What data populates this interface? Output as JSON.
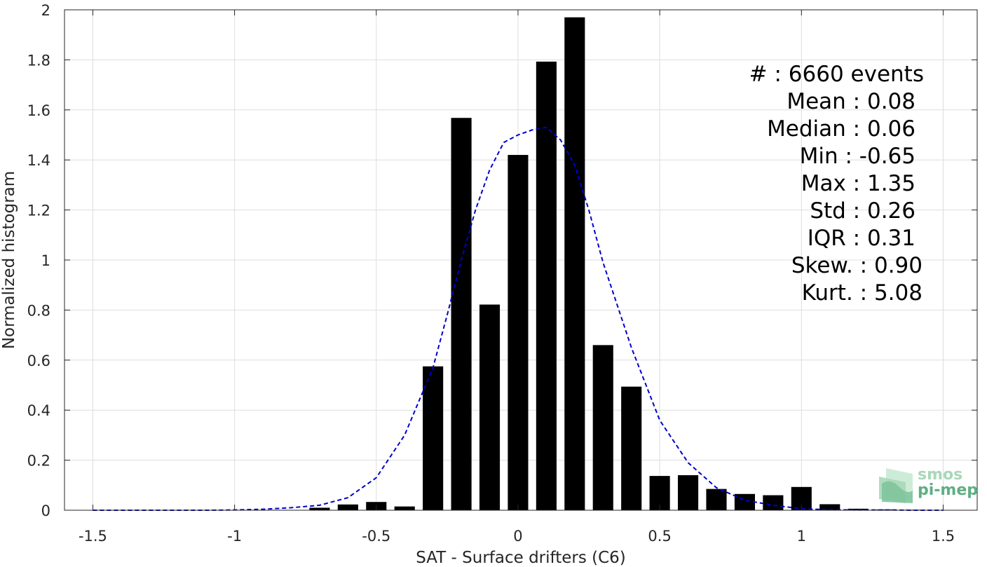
{
  "chart_data": {
    "type": "bar",
    "xlabel": "SAT - Surface drifters (C6)",
    "ylabel": "Normalized histogram",
    "xlim": [
      -1.6,
      1.62
    ],
    "ylim": [
      0,
      2
    ],
    "x_ticks": [
      -1.5,
      -1,
      -0.5,
      0,
      0.5,
      1,
      1.5
    ],
    "x_tick_labels": [
      "-1.5",
      "-1",
      "-0.5",
      "0",
      "0.5",
      "1",
      "1.5"
    ],
    "y_ticks": [
      0,
      0.2,
      0.4,
      0.6,
      0.8,
      1,
      1.2,
      1.4,
      1.6,
      1.8,
      2
    ],
    "y_tick_labels": [
      "0",
      "0.2",
      "0.4",
      "0.6",
      "0.8",
      "1",
      "1.2",
      "1.4",
      "1.6",
      "1.8",
      "2"
    ],
    "grid": true,
    "bar_color": "#000000",
    "bar_width": 0.072,
    "bars": {
      "x": [
        -0.7,
        -0.6,
        -0.5,
        -0.4,
        -0.3,
        -0.2,
        -0.1,
        0.0,
        0.1,
        0.2,
        0.3,
        0.4,
        0.5,
        0.6,
        0.7,
        0.8,
        0.9,
        1.0,
        1.1,
        1.2,
        1.3,
        1.4
      ],
      "values": [
        0.01,
        0.023,
        0.033,
        0.015,
        0.575,
        1.568,
        0.822,
        1.42,
        1.793,
        1.97,
        0.66,
        0.494,
        0.137,
        0.14,
        0.085,
        0.065,
        0.06,
        0.093,
        0.024,
        0.006,
        0.003,
        0.002
      ]
    },
    "fit_curve": {
      "style": "dashed",
      "color": "#0000cc",
      "x": [
        -1.5,
        -1.4,
        -1.3,
        -1.2,
        -1.1,
        -1.0,
        -0.9,
        -0.8,
        -0.7,
        -0.6,
        -0.5,
        -0.4,
        -0.3,
        -0.25,
        -0.2,
        -0.15,
        -0.1,
        -0.05,
        0.0,
        0.05,
        0.1,
        0.15,
        0.2,
        0.25,
        0.3,
        0.4,
        0.5,
        0.6,
        0.7,
        0.8,
        0.9,
        1.0,
        1.1,
        1.2,
        1.3,
        1.4,
        1.5
      ],
      "y": [
        0,
        0,
        0,
        0,
        0,
        0.001,
        0.004,
        0.01,
        0.02,
        0.05,
        0.13,
        0.3,
        0.57,
        0.78,
        1.0,
        1.2,
        1.36,
        1.47,
        1.5,
        1.52,
        1.53,
        1.48,
        1.38,
        1.2,
        0.99,
        0.65,
        0.36,
        0.19,
        0.09,
        0.04,
        0.02,
        0.006,
        0.002,
        0.001,
        0.001,
        0.0,
        0.0
      ]
    }
  },
  "stats": [
    {
      "label": "#  : 6660 events"
    },
    {
      "label": "Mean : 0.08"
    },
    {
      "label": "Median : 0.06"
    },
    {
      "label": "Min : -0.65"
    },
    {
      "label": "Max : 1.35"
    },
    {
      "label": "Std : 0.26"
    },
    {
      "label": "IQR : 0.31"
    },
    {
      "label": "Skew. : 0.90"
    },
    {
      "label": "Kurt. : 5.08"
    }
  ],
  "logo": {
    "line1": "smos",
    "line2": "pi-mep",
    "color_light": "#a8d8b8",
    "color_dark": "#5fae84"
  }
}
